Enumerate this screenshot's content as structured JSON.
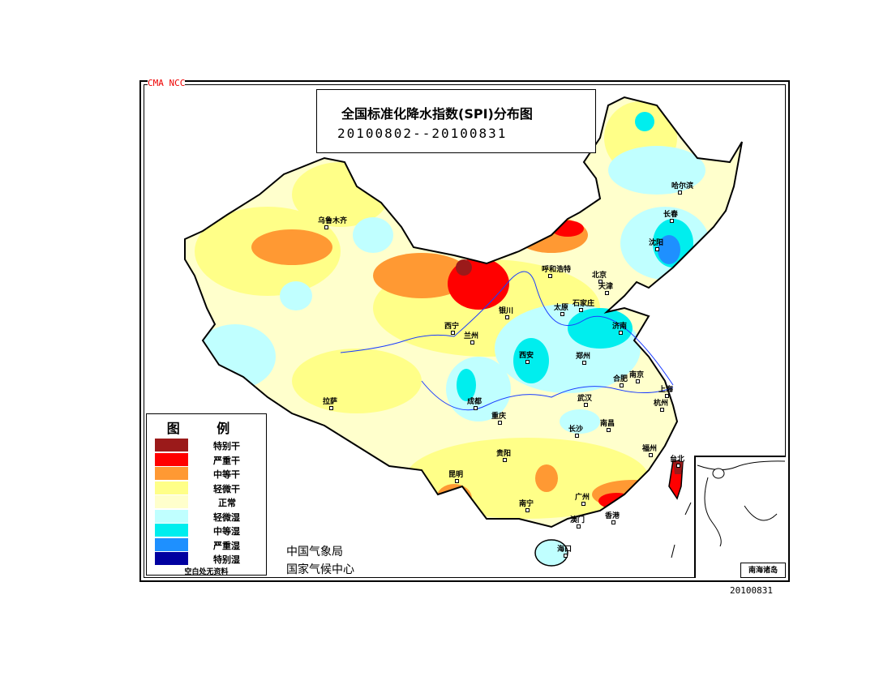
{
  "header": {
    "org_label": "CMA  NCC",
    "title": "全国标准化降水指数(SPI)分布图",
    "date_range": "20100802--20100831"
  },
  "legend": {
    "title": "图  例",
    "items": [
      {
        "label": "特别干",
        "color": "#9b1a1a"
      },
      {
        "label": "严重干",
        "color": "#ff0000"
      },
      {
        "label": "中等干",
        "color": "#ff9933"
      },
      {
        "label": "轻微干",
        "color": "#ffff88"
      },
      {
        "label": "正常",
        "color": "#ffffcc"
      },
      {
        "label": "轻微湿",
        "color": "#c0ffff"
      },
      {
        "label": "中等湿",
        "color": "#00eeee"
      },
      {
        "label": "严重湿",
        "color": "#1e90ff"
      },
      {
        "label": "特别湿",
        "color": "#0000a0"
      }
    ],
    "note": "空白处无资料"
  },
  "agency": {
    "line1": "中国气象局",
    "line2": "国家气候中心"
  },
  "inset_label": "南海诸岛",
  "date_stamp": "20100831",
  "cities": [
    "乌鲁木齐",
    "哈尔滨",
    "长春",
    "沈阳",
    "呼和浩特",
    "北京",
    "天津",
    "石家庄",
    "太原",
    "济南",
    "银川",
    "西宁",
    "兰州",
    "西安",
    "郑州",
    "合肥",
    "南京",
    "上海",
    "杭州",
    "武汉",
    "成都",
    "重庆",
    "长沙",
    "南昌",
    "福州",
    "台北",
    "贵阳",
    "昆明",
    "南宁",
    "广州",
    "澳门",
    "香港",
    "海口",
    "拉萨"
  ]
}
